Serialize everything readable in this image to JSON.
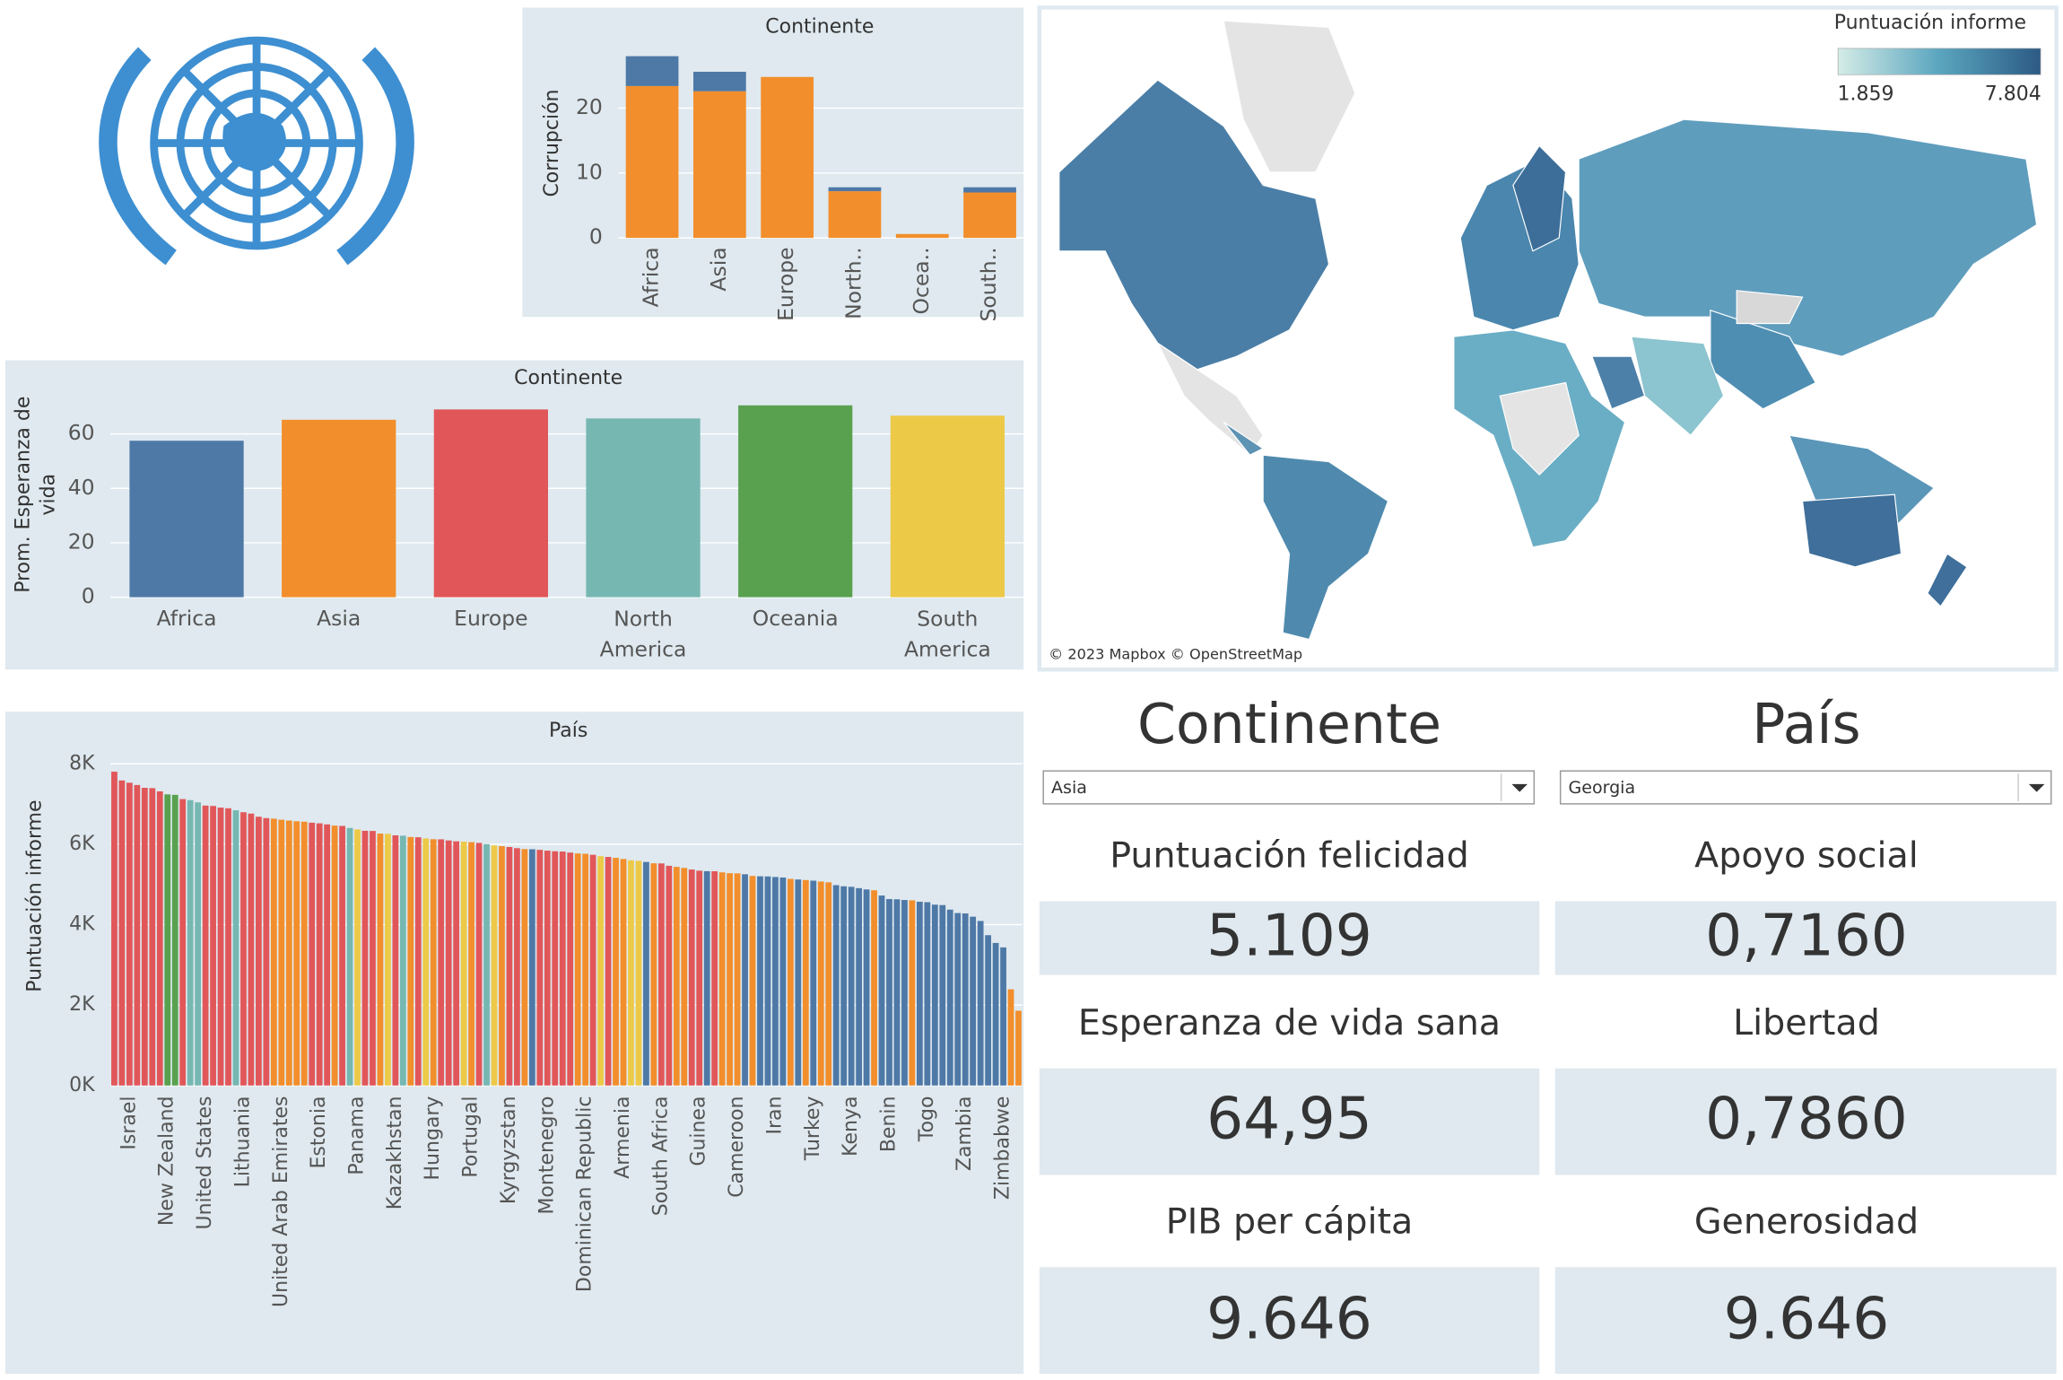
{
  "chart_data": [
    {
      "type": "stacked_bar",
      "title": "Continente",
      "y_label": "Corrupción",
      "categories": [
        "Africa",
        "Asia",
        "Europe",
        "North..",
        "Ocea..",
        "South.."
      ],
      "series": [
        {
          "color": "#f28e2b",
          "values": [
            23.4,
            22.6,
            24.8,
            7.2,
            0.6,
            7
          ]
        },
        {
          "color": "#4e79a7",
          "values": [
            4.6,
            3,
            0,
            0.6,
            0,
            0.8
          ]
        }
      ],
      "ylim": [
        0,
        29
      ],
      "yticks": [
        0,
        10,
        20
      ],
      "grid": true
    },
    {
      "type": "bar",
      "title": "Continente",
      "y_label": "Prom. Esperanza de vida",
      "categories": [
        "Africa",
        "Asia",
        "Europe",
        "North America",
        "Oceania",
        "South America"
      ],
      "values": [
        57.5,
        65.2,
        69,
        65.7,
        70.5,
        66.7
      ],
      "colors": [
        "#4e79a7",
        "#f28e2b",
        "#e15759",
        "#76b7b2",
        "#59a14f",
        "#edc948"
      ],
      "ylim": [
        0,
        74
      ],
      "yticks": [
        0,
        20,
        40,
        60
      ],
      "grid": true
    },
    {
      "type": "bar",
      "title": "País",
      "y_label": "Puntuación informe",
      "categories": [
        null,
        null,
        "Israel",
        null,
        null,
        null,
        null,
        "New Zealand",
        null,
        null,
        null,
        null,
        "United States",
        null,
        null,
        null,
        null,
        "Lithuania",
        null,
        null,
        null,
        null,
        "United Arab Emirates",
        null,
        null,
        null,
        null,
        "Estonia",
        null,
        null,
        null,
        null,
        "Panama",
        null,
        null,
        null,
        null,
        "Kazakhstan",
        null,
        null,
        null,
        null,
        "Hungary",
        null,
        null,
        null,
        null,
        "Portugal",
        null,
        null,
        null,
        null,
        "Kyrgyzstan",
        null,
        null,
        null,
        null,
        "Montenegro",
        null,
        null,
        null,
        null,
        "Dominican Republic",
        null,
        null,
        null,
        null,
        "Armenia",
        null,
        null,
        null,
        null,
        "South Africa",
        null,
        null,
        null,
        null,
        "Guinea",
        null,
        null,
        null,
        null,
        "Cameroon",
        null,
        null,
        null,
        null,
        "Iran",
        null,
        null,
        null,
        null,
        "Turkey",
        null,
        null,
        null,
        null,
        "Kenya",
        null,
        null,
        null,
        null,
        "Benin",
        null,
        null,
        null,
        null,
        "Togo",
        null,
        null,
        null,
        null,
        "Zambia",
        null,
        null,
        null,
        null,
        "Zimbabwe",
        null,
        null
      ],
      "values": [
        7804,
        7586,
        7530,
        7473,
        7403,
        7395,
        7315,
        7240,
        7228,
        7123,
        7097,
        7041,
        6961,
        6951,
        6911,
        6894,
        6845,
        6796,
        6762,
        6684,
        6650,
        6636,
        6609,
        6589,
        6571,
        6560,
        6535,
        6520,
        6494,
        6463,
        6455,
        6405,
        6368,
        6334,
        6330,
        6265,
        6259,
        6221,
        6213,
        6180,
        6173,
        6144,
        6125,
        6122,
        6094,
        6073,
        6064,
        6051,
        6032,
        6004,
        5971,
        5952,
        5931,
        5902,
        5879,
        5875,
        5860,
        5840,
        5825,
        5818,
        5793,
        5771,
        5763,
        5738,
        5703,
        5684,
        5661,
        5633,
        5600,
        5587,
        5559,
        5526,
        5523,
        5464,
        5437,
        5411,
        5371,
        5342,
        5330,
        5329,
        5301,
        5280,
        5275,
        5254,
        5211,
        5203,
        5199,
        5185,
        5173,
        5138,
        5123,
        5109,
        5094,
        5072,
        5053,
        4982,
        4954,
        4941,
        4908,
        4876,
        4855,
        4724,
        4636,
        4631,
        4614,
        4605,
        4570,
        4559,
        4497,
        4487,
        4374,
        4289,
        4279,
        4198,
        4091,
        3738,
        3545,
        3435,
        2392,
        1859
      ],
      "colors": [
        "#e15759",
        "#e15759",
        "#e15759",
        "#e15759",
        "#e15759",
        "#e15759",
        "#e15759",
        "#59a14f",
        "#59a14f",
        "#e15759",
        "#76b7b2",
        "#76b7b2",
        "#e15759",
        "#e15759",
        "#e15759",
        "#e15759",
        "#76b7b2",
        "#e15759",
        "#e15759",
        "#e15759",
        "#e15759",
        "#f28e2b",
        "#f28e2b",
        "#f28e2b",
        "#f28e2b",
        "#f28e2b",
        "#e15759",
        "#e15759",
        "#e15759",
        "#f28e2b",
        "#e15759",
        "#76b7b2",
        "#edc948",
        "#e15759",
        "#e15759",
        "#f28e2b",
        "#edc948",
        "#e15759",
        "#76b7b2",
        "#f28e2b",
        "#e15759",
        "#edc948",
        "#f28e2b",
        "#e15759",
        "#e15759",
        "#e15759",
        "#edc948",
        "#f28e2b",
        "#e15759",
        "#76b7b2",
        "#edc948",
        "#f28e2b",
        "#e15759",
        "#e15759",
        "#f28e2b",
        "#4e79a7",
        "#e15759",
        "#e15759",
        "#e15759",
        "#e15759",
        "#e15759",
        "#f28e2b",
        "#f28e2b",
        "#e15759",
        "#edc948",
        "#e15759",
        "#f28e2b",
        "#f28e2b",
        "#edc948",
        "#edc948",
        "#4e79a7",
        "#f28e2b",
        "#e15759",
        "#e15759",
        "#f28e2b",
        "#f28e2b",
        "#e15759",
        "#e15759",
        "#4e79a7",
        "#e15759",
        "#f28e2b",
        "#f28e2b",
        "#f28e2b",
        "#4e79a7",
        "#f28e2b",
        "#4e79a7",
        "#4e79a7",
        "#4e79a7",
        "#4e79a7",
        "#f28e2b",
        "#4e79a7",
        "#f28e2b",
        "#4e79a7",
        "#f28e2b",
        "#f28e2b",
        "#4e79a7",
        "#4e79a7",
        "#4e79a7",
        "#4e79a7",
        "#4e79a7",
        "#f28e2b",
        "#4e79a7",
        "#4e79a7",
        "#4e79a7",
        "#4e79a7",
        "#f28e2b",
        "#4e79a7",
        "#4e79a7",
        "#4e79a7",
        "#4e79a7",
        "#4e79a7",
        "#4e79a7",
        "#4e79a7",
        "#4e79a7",
        "#4e79a7",
        "#4e79a7",
        "#4e79a7",
        "#4e79a7",
        "#f28e2b",
        "#f28e2b"
      ],
      "ylim": [
        0,
        8150
      ],
      "yticks": [
        {
          "value": 0,
          "label": "0K"
        },
        {
          "value": 2000,
          "label": "2K"
        },
        {
          "value": 4000,
          "label": "4K"
        },
        {
          "value": 6000,
          "label": "6K"
        },
        {
          "value": 8000,
          "label": "8K"
        }
      ],
      "grid": true
    }
  ],
  "map": {
    "legend_title": "Puntuación informe",
    "legend_min": 1.859,
    "legend_max": 7.804,
    "attribution": "© 2023 Mapbox © OpenStreetMap"
  },
  "filters": [
    {
      "label": "Continente",
      "selected": "Asia"
    },
    {
      "label": "País",
      "selected": "Georgia"
    }
  ],
  "kpis": [
    {
      "label": "Puntuación felicidad",
      "value": "5.109"
    },
    {
      "label": "Apoyo social",
      "value": "0,7160"
    },
    {
      "label": "Esperanza de vida sana",
      "value": "64,95"
    },
    {
      "label": "Libertad",
      "value": "0,7860"
    },
    {
      "label": "PIB per cápita",
      "value": "9.646"
    },
    {
      "label": "Generosidad",
      "value": "9.646"
    }
  ]
}
